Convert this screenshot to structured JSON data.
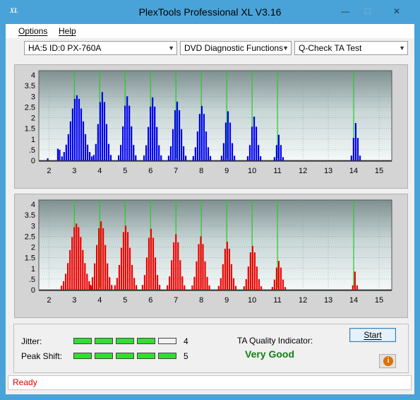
{
  "window": {
    "title": "PlexTools Professional XL V3.16",
    "app_icon_text": "XL",
    "minimize": "—",
    "maximize": "☐",
    "close": "✕"
  },
  "menu": {
    "items": [
      {
        "label": "Options",
        "accel": "O"
      },
      {
        "label": "Help",
        "accel": "H"
      }
    ]
  },
  "toolbar": {
    "drive": "HA:5 ID:0  PX-760A",
    "function": "DVD Diagnostic Functions",
    "test": "Q-Check TA Test"
  },
  "colors": {
    "chart_bg": "#c5d2d2",
    "grid": "#8a9a9a",
    "marker": "#22cc22",
    "top_series": "#0000ee",
    "bottom_series": "#ee0000"
  },
  "chart_data": [
    {
      "type": "bar",
      "name": "top",
      "xlim": [
        1.6,
        15.5
      ],
      "ylim": [
        0,
        4.2
      ],
      "x_ticks": [
        "2",
        "3",
        "4",
        "5",
        "6",
        "7",
        "8",
        "9",
        "10",
        "11",
        "12",
        "13",
        "14",
        "15"
      ],
      "y_ticks": [
        "0",
        "0.5",
        "1",
        "1.5",
        "2",
        "2.5",
        "3",
        "3.5",
        "4"
      ],
      "marker_x": [
        3,
        4,
        5,
        6,
        7,
        8,
        9,
        10,
        11,
        14
      ],
      "peaks": [
        {
          "center": 3.1,
          "height": 3.05,
          "half_width": 0.62
        },
        {
          "center": 4.1,
          "height": 3.2,
          "half_width": 0.36
        },
        {
          "center": 5.08,
          "height": 3.0,
          "half_width": 0.34
        },
        {
          "center": 6.08,
          "height": 2.95,
          "half_width": 0.32
        },
        {
          "center": 7.05,
          "height": 2.75,
          "half_width": 0.32
        },
        {
          "center": 8.02,
          "height": 2.55,
          "half_width": 0.3
        },
        {
          "center": 9.05,
          "height": 2.3,
          "half_width": 0.28
        },
        {
          "center": 10.08,
          "height": 2.05,
          "half_width": 0.26
        },
        {
          "center": 11.05,
          "height": 1.2,
          "half_width": 0.18
        },
        {
          "center": 14.08,
          "height": 1.75,
          "half_width": 0.17
        }
      ],
      "extra": [
        {
          "x": 1.95,
          "y": 0.1
        },
        {
          "x": 2.35,
          "y": 0.55
        },
        {
          "x": 2.42,
          "y": 0.5
        }
      ]
    },
    {
      "type": "bar",
      "name": "bottom",
      "xlim": [
        1.6,
        15.5
      ],
      "ylim": [
        0,
        4.2
      ],
      "x_ticks": [
        "2",
        "3",
        "4",
        "5",
        "6",
        "7",
        "8",
        "9",
        "10",
        "11",
        "12",
        "13",
        "14",
        "15"
      ],
      "y_ticks": [
        "0",
        "0.5",
        "1",
        "1.5",
        "2",
        "2.5",
        "3",
        "3.5",
        "4"
      ],
      "marker_x": [
        3,
        4,
        5,
        6,
        7,
        8,
        9,
        10,
        11,
        14
      ],
      "peaks": [
        {
          "center": 3.08,
          "height": 3.1,
          "half_width": 0.55
        },
        {
          "center": 4.05,
          "height": 3.2,
          "half_width": 0.4
        },
        {
          "center": 5.02,
          "height": 3.0,
          "half_width": 0.38
        },
        {
          "center": 6.02,
          "height": 2.85,
          "half_width": 0.36
        },
        {
          "center": 7.0,
          "height": 2.6,
          "half_width": 0.34
        },
        {
          "center": 7.98,
          "height": 2.5,
          "half_width": 0.34
        },
        {
          "center": 9.02,
          "height": 2.25,
          "half_width": 0.32
        },
        {
          "center": 10.02,
          "height": 2.05,
          "half_width": 0.3
        },
        {
          "center": 11.05,
          "height": 1.35,
          "half_width": 0.25
        },
        {
          "center": 14.05,
          "height": 0.85,
          "half_width": 0.1
        }
      ],
      "extra": []
    }
  ],
  "status": {
    "jitter_label": "Jitter:",
    "jitter_value": "4",
    "jitter_level": 4,
    "peak_label": "Peak Shift:",
    "peak_value": "5",
    "peak_level": 5,
    "meter_segments": 5,
    "ta_label": "TA Quality Indicator:",
    "ta_value": "Very Good",
    "ta_color": "#108010",
    "start_label": "Start",
    "info_glyph": "i"
  },
  "statusbar": {
    "text": "Ready"
  }
}
